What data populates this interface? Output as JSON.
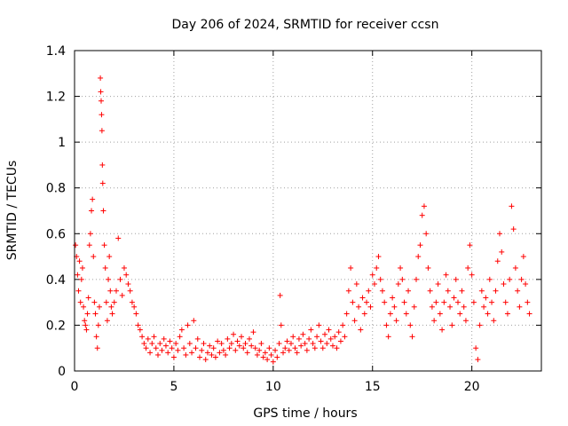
{
  "chart_data": {
    "type": "scatter",
    "title": "Day 206 of 2024, SRMTID for receiver ccsn",
    "xlabel": "GPS time / hours",
    "ylabel": "SRMTID / TECUs",
    "xlim": [
      0,
      23.5
    ],
    "ylim": [
      0,
      1.4
    ],
    "x_ticks": [
      0,
      5,
      10,
      15,
      20
    ],
    "x_tick_labels": [
      "0",
      "5",
      "10",
      "15",
      "20"
    ],
    "y_ticks": [
      0,
      0.2,
      0.4,
      0.6,
      0.8,
      1.0,
      1.2,
      1.4
    ],
    "y_tick_labels": [
      "0",
      "0.2",
      "0.4",
      "0.6",
      "0.8",
      "1",
      "1.2",
      "1.4"
    ],
    "grid": true,
    "marker": "+",
    "color": "#ff0000",
    "series": [
      {
        "name": "SRMTID",
        "points": [
          [
            0.05,
            0.55
          ],
          [
            0.1,
            0.5
          ],
          [
            0.15,
            0.42
          ],
          [
            0.2,
            0.35
          ],
          [
            0.25,
            0.48
          ],
          [
            0.3,
            0.3
          ],
          [
            0.35,
            0.4
          ],
          [
            0.4,
            0.45
          ],
          [
            0.45,
            0.28
          ],
          [
            0.5,
            0.22
          ],
          [
            0.55,
            0.2
          ],
          [
            0.6,
            0.18
          ],
          [
            0.65,
            0.25
          ],
          [
            0.7,
            0.32
          ],
          [
            0.75,
            0.55
          ],
          [
            0.8,
            0.6
          ],
          [
            0.85,
            0.7
          ],
          [
            0.9,
            0.75
          ],
          [
            0.95,
            0.5
          ],
          [
            1.0,
            0.3
          ],
          [
            1.05,
            0.25
          ],
          [
            1.1,
            0.15
          ],
          [
            1.15,
            0.1
          ],
          [
            1.2,
            0.2
          ],
          [
            1.25,
            0.28
          ],
          [
            1.3,
            1.28
          ],
          [
            1.32,
            1.22
          ],
          [
            1.34,
            1.18
          ],
          [
            1.36,
            1.12
          ],
          [
            1.38,
            1.05
          ],
          [
            1.4,
            0.9
          ],
          [
            1.42,
            0.82
          ],
          [
            1.45,
            0.7
          ],
          [
            1.5,
            0.55
          ],
          [
            1.55,
            0.45
          ],
          [
            1.6,
            0.3
          ],
          [
            1.65,
            0.22
          ],
          [
            1.7,
            0.4
          ],
          [
            1.75,
            0.5
          ],
          [
            1.8,
            0.35
          ],
          [
            1.85,
            0.28
          ],
          [
            1.9,
            0.25
          ],
          [
            2.0,
            0.3
          ],
          [
            2.1,
            0.35
          ],
          [
            2.2,
            0.58
          ],
          [
            2.3,
            0.4
          ],
          [
            2.4,
            0.33
          ],
          [
            2.5,
            0.45
          ],
          [
            2.6,
            0.42
          ],
          [
            2.7,
            0.38
          ],
          [
            2.8,
            0.35
          ],
          [
            2.9,
            0.3
          ],
          [
            3.0,
            0.28
          ],
          [
            3.1,
            0.25
          ],
          [
            3.2,
            0.2
          ],
          [
            3.3,
            0.18
          ],
          [
            3.4,
            0.15
          ],
          [
            3.5,
            0.12
          ],
          [
            3.6,
            0.1
          ],
          [
            3.7,
            0.14
          ],
          [
            3.8,
            0.08
          ],
          [
            3.9,
            0.12
          ],
          [
            4.0,
            0.15
          ],
          [
            4.1,
            0.1
          ],
          [
            4.2,
            0.07
          ],
          [
            4.3,
            0.12
          ],
          [
            4.4,
            0.09
          ],
          [
            4.5,
            0.14
          ],
          [
            4.6,
            0.11
          ],
          [
            4.7,
            0.08
          ],
          [
            4.8,
            0.13
          ],
          [
            4.9,
            0.1
          ],
          [
            5.0,
            0.06
          ],
          [
            5.1,
            0.12
          ],
          [
            5.2,
            0.09
          ],
          [
            5.3,
            0.15
          ],
          [
            5.4,
            0.18
          ],
          [
            5.5,
            0.1
          ],
          [
            5.6,
            0.07
          ],
          [
            5.7,
            0.2
          ],
          [
            5.8,
            0.12
          ],
          [
            5.9,
            0.08
          ],
          [
            6.0,
            0.22
          ],
          [
            6.1,
            0.1
          ],
          [
            6.2,
            0.14
          ],
          [
            6.3,
            0.06
          ],
          [
            6.4,
            0.09
          ],
          [
            6.5,
            0.12
          ],
          [
            6.6,
            0.05
          ],
          [
            6.7,
            0.08
          ],
          [
            6.8,
            0.11
          ],
          [
            6.9,
            0.07
          ],
          [
            7.0,
            0.1
          ],
          [
            7.1,
            0.06
          ],
          [
            7.2,
            0.13
          ],
          [
            7.3,
            0.08
          ],
          [
            7.4,
            0.12
          ],
          [
            7.5,
            0.09
          ],
          [
            7.6,
            0.07
          ],
          [
            7.7,
            0.14
          ],
          [
            7.8,
            0.1
          ],
          [
            7.9,
            0.12
          ],
          [
            8.0,
            0.16
          ],
          [
            8.1,
            0.09
          ],
          [
            8.2,
            0.13
          ],
          [
            8.3,
            0.11
          ],
          [
            8.4,
            0.15
          ],
          [
            8.5,
            0.1
          ],
          [
            8.6,
            0.12
          ],
          [
            8.7,
            0.08
          ],
          [
            8.8,
            0.14
          ],
          [
            8.9,
            0.11
          ],
          [
            9.0,
            0.17
          ],
          [
            9.1,
            0.1
          ],
          [
            9.2,
            0.07
          ],
          [
            9.3,
            0.09
          ],
          [
            9.4,
            0.12
          ],
          [
            9.5,
            0.06
          ],
          [
            9.6,
            0.08
          ],
          [
            9.7,
            0.05
          ],
          [
            9.8,
            0.1
          ],
          [
            9.9,
            0.07
          ],
          [
            10.0,
            0.04
          ],
          [
            10.1,
            0.09
          ],
          [
            10.2,
            0.06
          ],
          [
            10.3,
            0.12
          ],
          [
            10.35,
            0.33
          ],
          [
            10.4,
            0.2
          ],
          [
            10.5,
            0.08
          ],
          [
            10.6,
            0.1
          ],
          [
            10.7,
            0.13
          ],
          [
            10.8,
            0.09
          ],
          [
            10.9,
            0.12
          ],
          [
            11.0,
            0.15
          ],
          [
            11.1,
            0.1
          ],
          [
            11.2,
            0.08
          ],
          [
            11.3,
            0.14
          ],
          [
            11.4,
            0.11
          ],
          [
            11.5,
            0.16
          ],
          [
            11.6,
            0.12
          ],
          [
            11.7,
            0.09
          ],
          [
            11.8,
            0.14
          ],
          [
            11.9,
            0.18
          ],
          [
            12.0,
            0.12
          ],
          [
            12.1,
            0.1
          ],
          [
            12.2,
            0.15
          ],
          [
            12.3,
            0.2
          ],
          [
            12.4,
            0.13
          ],
          [
            12.5,
            0.1
          ],
          [
            12.6,
            0.16
          ],
          [
            12.7,
            0.12
          ],
          [
            12.8,
            0.18
          ],
          [
            12.9,
            0.14
          ],
          [
            13.0,
            0.11
          ],
          [
            13.1,
            0.15
          ],
          [
            13.2,
            0.1
          ],
          [
            13.3,
            0.17
          ],
          [
            13.4,
            0.13
          ],
          [
            13.5,
            0.2
          ],
          [
            13.6,
            0.15
          ],
          [
            13.7,
            0.25
          ],
          [
            13.8,
            0.35
          ],
          [
            13.9,
            0.45
          ],
          [
            14.0,
            0.3
          ],
          [
            14.1,
            0.22
          ],
          [
            14.2,
            0.38
          ],
          [
            14.3,
            0.28
          ],
          [
            14.4,
            0.18
          ],
          [
            14.5,
            0.32
          ],
          [
            14.6,
            0.25
          ],
          [
            14.7,
            0.3
          ],
          [
            14.8,
            0.35
          ],
          [
            14.9,
            0.28
          ],
          [
            15.0,
            0.42
          ],
          [
            15.1,
            0.38
          ],
          [
            15.2,
            0.45
          ],
          [
            15.3,
            0.5
          ],
          [
            15.4,
            0.4
          ],
          [
            15.5,
            0.35
          ],
          [
            15.6,
            0.3
          ],
          [
            15.7,
            0.2
          ],
          [
            15.8,
            0.15
          ],
          [
            15.9,
            0.25
          ],
          [
            16.0,
            0.32
          ],
          [
            16.1,
            0.28
          ],
          [
            16.2,
            0.22
          ],
          [
            16.3,
            0.38
          ],
          [
            16.4,
            0.45
          ],
          [
            16.5,
            0.4
          ],
          [
            16.6,
            0.3
          ],
          [
            16.7,
            0.25
          ],
          [
            16.8,
            0.35
          ],
          [
            16.9,
            0.2
          ],
          [
            17.0,
            0.15
          ],
          [
            17.1,
            0.28
          ],
          [
            17.2,
            0.4
          ],
          [
            17.3,
            0.5
          ],
          [
            17.4,
            0.55
          ],
          [
            17.5,
            0.68
          ],
          [
            17.6,
            0.72
          ],
          [
            17.7,
            0.6
          ],
          [
            17.8,
            0.45
          ],
          [
            17.9,
            0.35
          ],
          [
            18.0,
            0.28
          ],
          [
            18.1,
            0.22
          ],
          [
            18.2,
            0.3
          ],
          [
            18.3,
            0.38
          ],
          [
            18.4,
            0.25
          ],
          [
            18.5,
            0.18
          ],
          [
            18.6,
            0.3
          ],
          [
            18.7,
            0.42
          ],
          [
            18.8,
            0.35
          ],
          [
            18.9,
            0.28
          ],
          [
            19.0,
            0.2
          ],
          [
            19.1,
            0.32
          ],
          [
            19.2,
            0.4
          ],
          [
            19.3,
            0.3
          ],
          [
            19.4,
            0.25
          ],
          [
            19.5,
            0.35
          ],
          [
            19.6,
            0.28
          ],
          [
            19.7,
            0.22
          ],
          [
            19.8,
            0.45
          ],
          [
            19.9,
            0.55
          ],
          [
            20.0,
            0.42
          ],
          [
            20.1,
            0.3
          ],
          [
            20.2,
            0.1
          ],
          [
            20.3,
            0.05
          ],
          [
            20.4,
            0.2
          ],
          [
            20.5,
            0.35
          ],
          [
            20.6,
            0.28
          ],
          [
            20.7,
            0.32
          ],
          [
            20.8,
            0.25
          ],
          [
            20.9,
            0.4
          ],
          [
            21.0,
            0.3
          ],
          [
            21.1,
            0.22
          ],
          [
            21.2,
            0.35
          ],
          [
            21.3,
            0.48
          ],
          [
            21.4,
            0.6
          ],
          [
            21.5,
            0.52
          ],
          [
            21.6,
            0.38
          ],
          [
            21.7,
            0.3
          ],
          [
            21.8,
            0.25
          ],
          [
            21.9,
            0.4
          ],
          [
            22.0,
            0.72
          ],
          [
            22.1,
            0.62
          ],
          [
            22.2,
            0.45
          ],
          [
            22.3,
            0.35
          ],
          [
            22.4,
            0.28
          ],
          [
            22.5,
            0.4
          ],
          [
            22.6,
            0.5
          ],
          [
            22.7,
            0.38
          ],
          [
            22.8,
            0.3
          ],
          [
            22.9,
            0.25
          ]
        ]
      }
    ]
  }
}
